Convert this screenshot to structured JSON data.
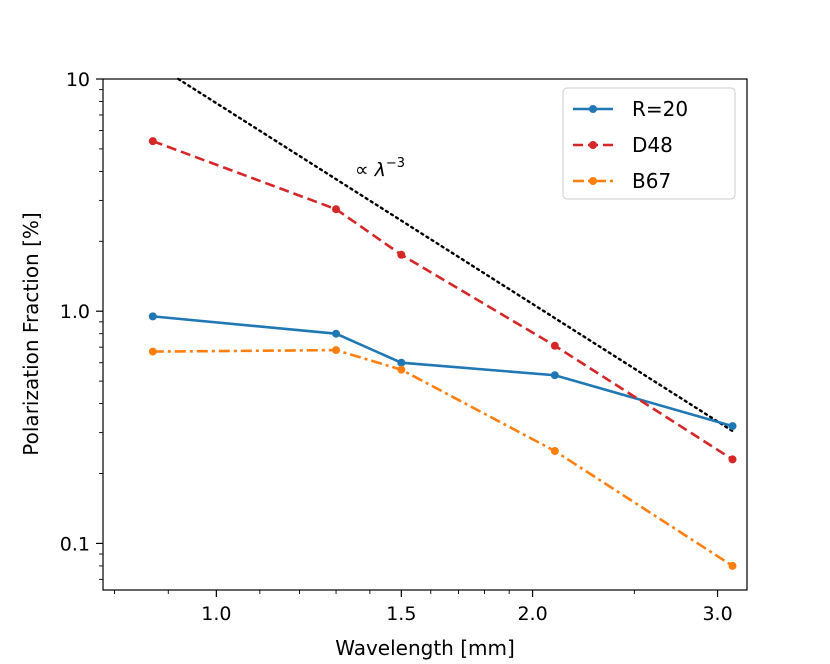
{
  "chart_data": {
    "type": "line",
    "title": "",
    "xlabel": "Wavelength [mm]",
    "ylabel": "Polarization Fraction [%]",
    "xscale": "log",
    "yscale": "log",
    "xlim": [
      0.78,
      3.2
    ],
    "ylim": [
      0.063,
      10
    ],
    "xticks": [
      {
        "value": 1.0,
        "label": "1.0"
      },
      {
        "value": 1.5,
        "label": "1.5"
      },
      {
        "value": 2.0,
        "label": "2.0"
      },
      {
        "value": 3.0,
        "label": "3.0"
      }
    ],
    "yticks": [
      {
        "value": 0.1,
        "label": "0.1"
      },
      {
        "value": 1.0,
        "label": "1.0"
      },
      {
        "value": 10,
        "label": "10"
      }
    ],
    "x": [
      0.87,
      1.3,
      1.5,
      2.1,
      3.1
    ],
    "series": [
      {
        "name": "R=20",
        "color": "#1f77b4",
        "style": "solid",
        "values": [
          0.95,
          0.8,
          0.6,
          0.53,
          0.32
        ]
      },
      {
        "name": "D48",
        "color": "#d62728",
        "style": "dashed",
        "values": [
          5.4,
          2.75,
          1.75,
          0.71,
          0.23
        ]
      },
      {
        "name": "B67",
        "color": "#ff7f0e",
        "style": "dashdot",
        "values": [
          0.67,
          0.68,
          0.56,
          0.25,
          0.08
        ]
      }
    ],
    "reference_line": {
      "label_prefix": "∝ ",
      "label_symbol": "λ",
      "label_exponent": "−3",
      "color": "#000000",
      "style": "dotted",
      "x": [
        0.92,
        3.1
      ],
      "values": [
        10.0,
        0.305
      ]
    },
    "legend_position": "top-right",
    "grid": false
  }
}
